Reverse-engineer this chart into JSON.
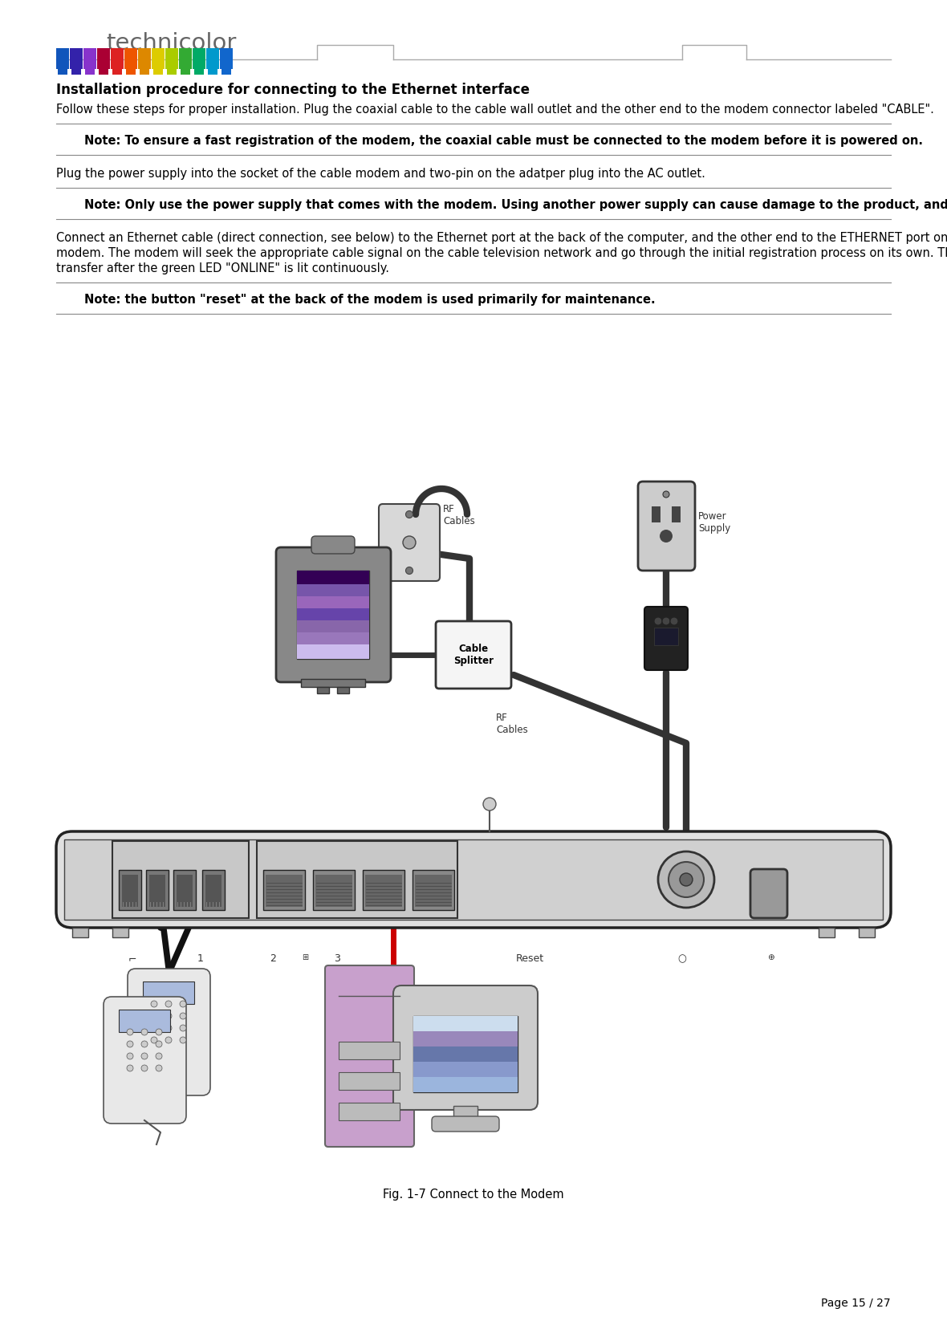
{
  "page_title": "technicolor",
  "section_title": "Installation procedure for connecting to the Ethernet interface",
  "para1": "Follow these steps for proper installation. Plug the coaxial cable to the cable wall outlet and the other end to the modem connector labeled \"CABLE\".",
  "note1": "Note: To ensure a fast registration of the modem, the coaxial cable must be connected to the modem\nbefore it is powered on.",
  "para2": "Plug the power supply into the socket of the cable modem and two-pin on the adatper plug into the AC outlet.",
  "note2": "Note: Only use the power supply that comes with the modem. Using another power supply can cause\ndamage to the product, and will void the warranty.",
  "para3": "Connect an Ethernet cable (direct connection, see below) to the Ethernet port at the back of the computer,\nand the other end to the ETHERNET port on the rear panel of the cable modem. The modem will seek the\nappropriate cable signal on the cable television network and go through the initial registration process on its\nown. The modem is ready for data transfer after the green LED \"ONLINE\" is lit continuously.",
  "note3": "Note: the button \"reset\" at the back of the modem is used primarily for maintenance.",
  "fig_caption": "Fig. 1-7 Connect to the Modem",
  "page_number": "Page 15 / 27",
  "bg_color": "#ffffff"
}
